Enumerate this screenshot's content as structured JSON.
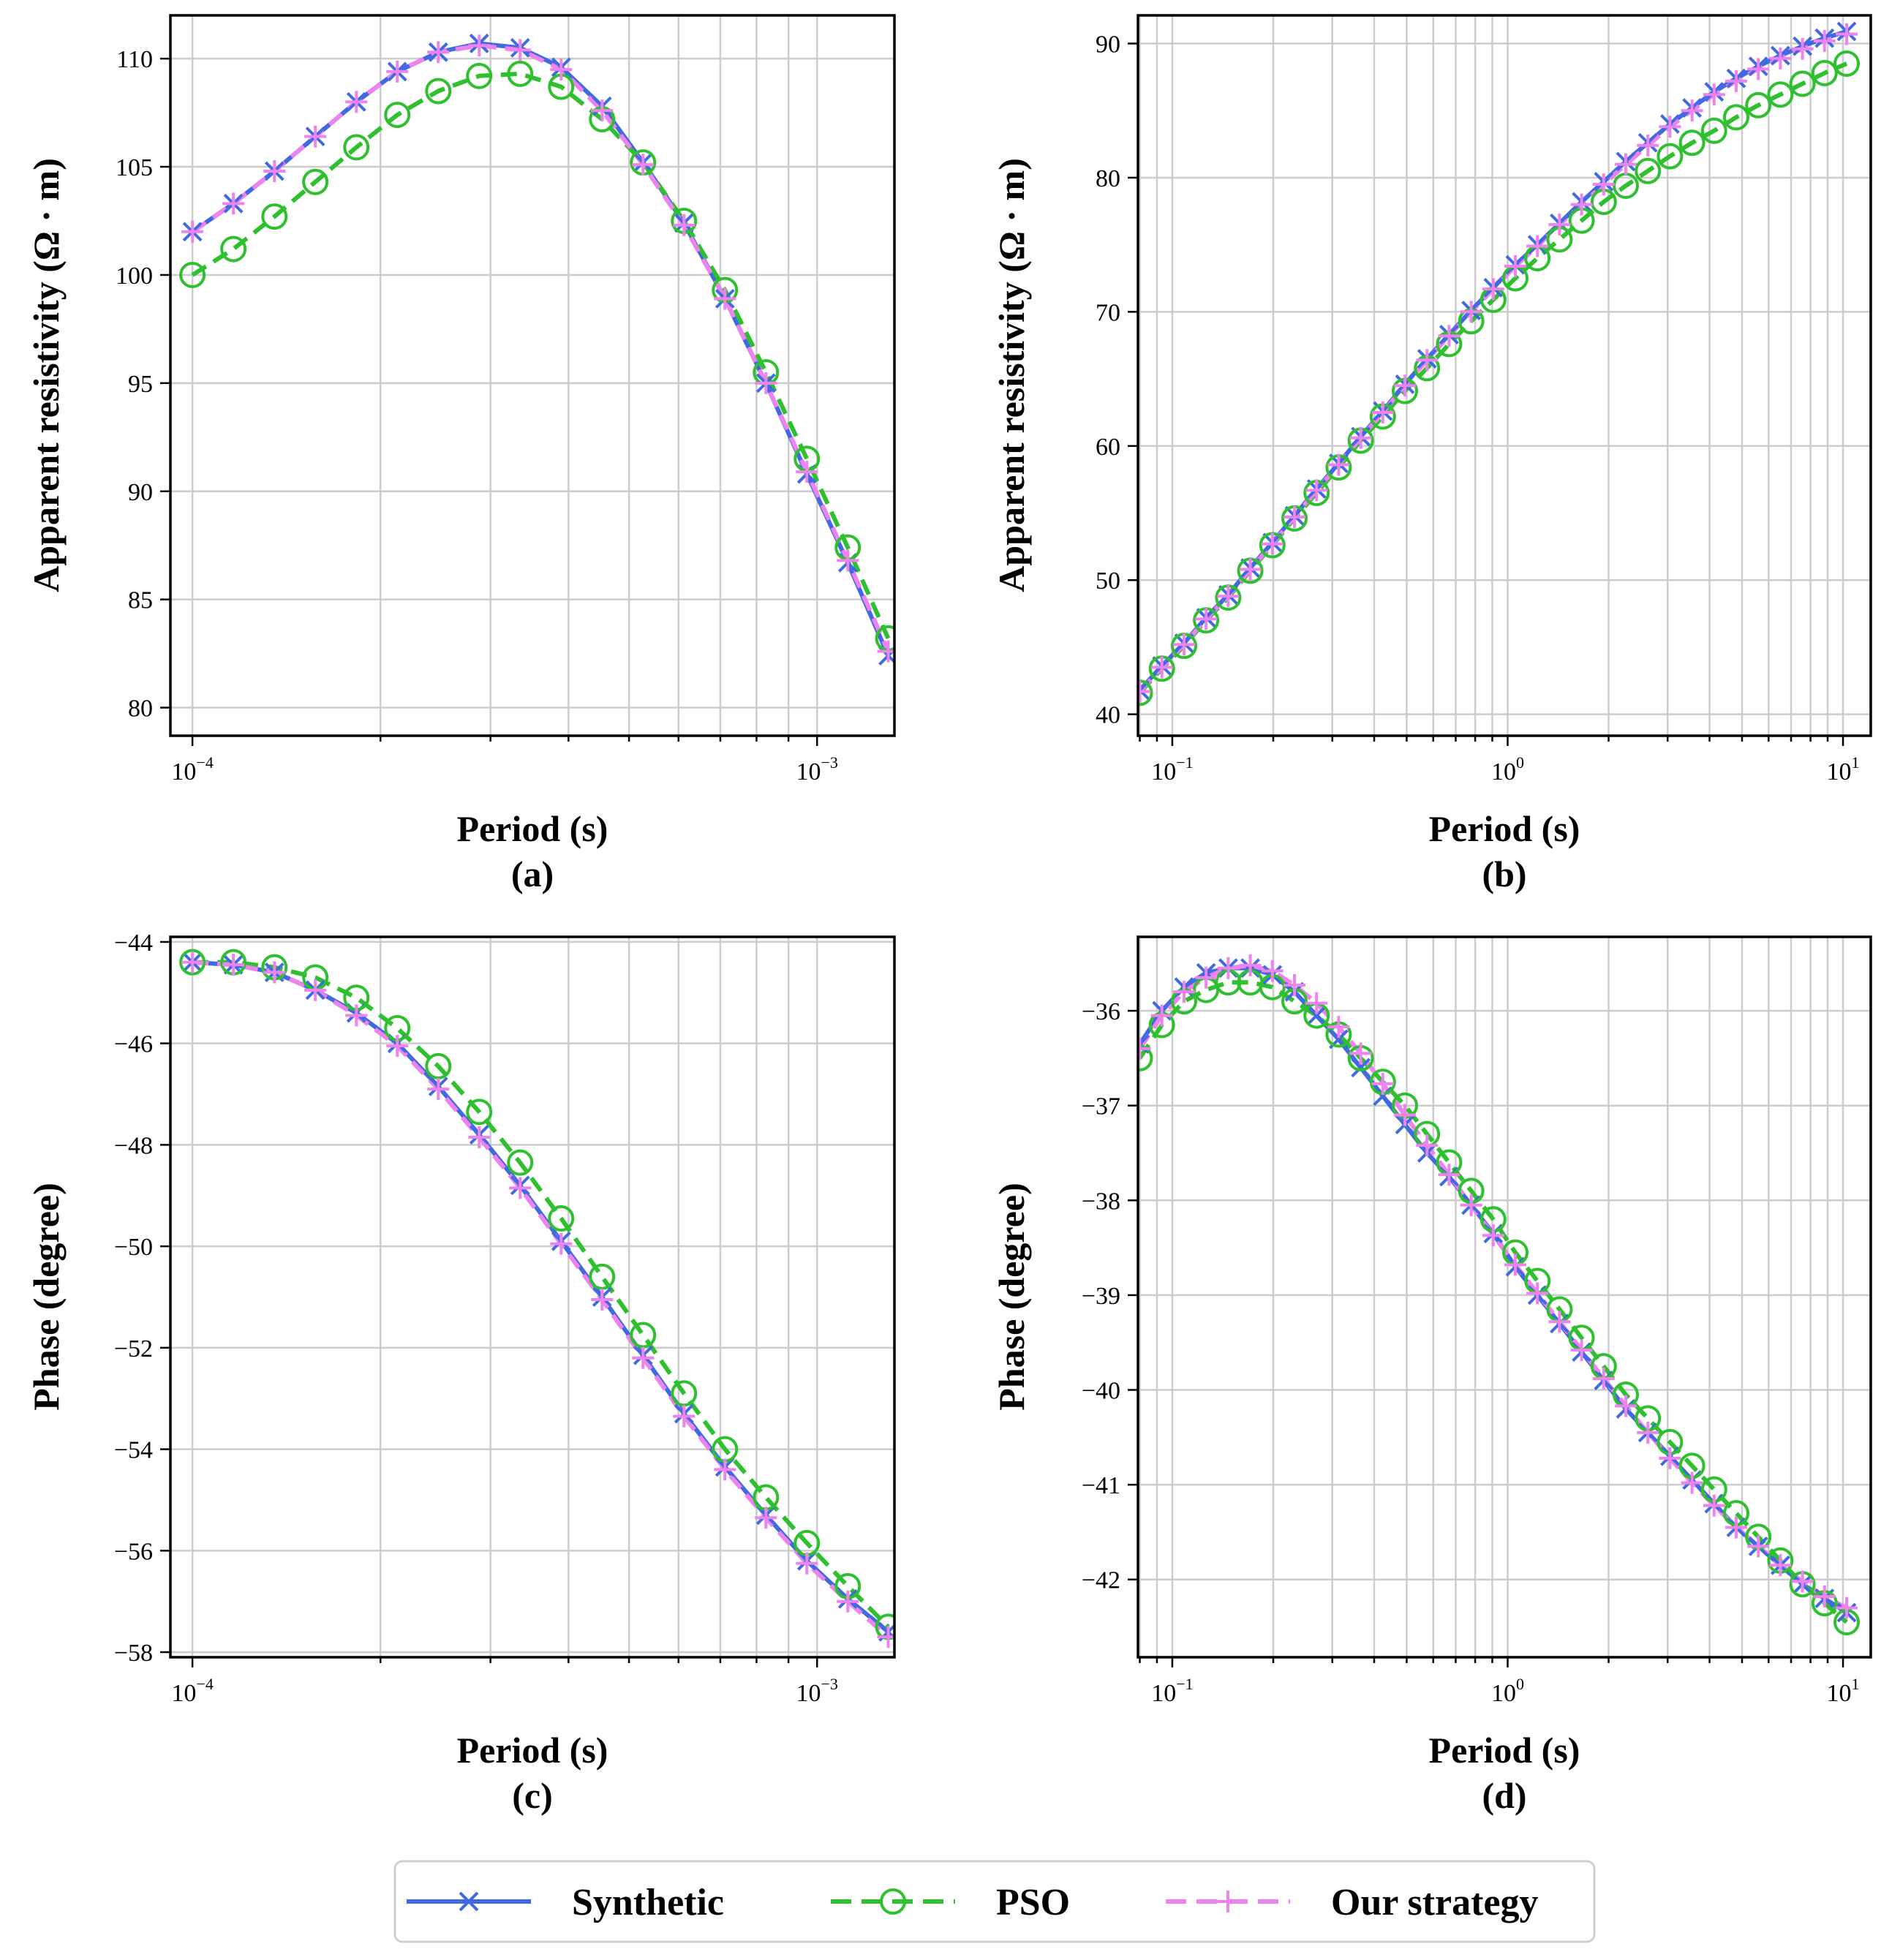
{
  "legend": {
    "location": "bottom-center",
    "entries": [
      {
        "key": "synthetic",
        "label": "Synthetic",
        "color": "#4169e1",
        "marker": "x",
        "line": "solid"
      },
      {
        "key": "pso",
        "label": "PSO",
        "color": "#2ec02e",
        "marker": "o",
        "line": "dashed"
      },
      {
        "key": "ours",
        "label": "Our strategy",
        "color": "#ee82ee",
        "marker": "+",
        "line": "dashed"
      }
    ]
  },
  "chart_data": [
    {
      "id": "a",
      "panel_label": "(a)",
      "type": "line",
      "xlabel": "Period (s)",
      "ylabel": "Apparent resistivity (Ω · m)",
      "xscale": "log",
      "xlim": [
        9.22e-05,
        0.00133
      ],
      "ylim": [
        78.7,
        112
      ],
      "xticks": [
        {
          "value": 0.0001,
          "base": "10",
          "exp": "−4"
        },
        {
          "value": 0.001,
          "base": "10",
          "exp": "−3"
        }
      ],
      "yticks": [
        80,
        85,
        90,
        95,
        100,
        105,
        110
      ],
      "grid": true,
      "x": [
        0.0001,
        0.0001163,
        0.0001353,
        0.0001573,
        0.000183,
        0.0002128,
        0.0002475,
        0.0002878,
        0.0003347,
        0.0003893,
        0.0004527,
        0.0005265,
        0.0006123,
        0.0007121,
        0.0008282,
        0.0009631,
        0.00112,
        0.0013
      ],
      "series": [
        {
          "key": "synthetic",
          "name": "Synthetic",
          "values": [
            102.0,
            103.3,
            104.8,
            106.4,
            108.0,
            109.4,
            110.3,
            110.7,
            110.5,
            109.6,
            107.8,
            105.2,
            102.4,
            98.9,
            95.0,
            90.8,
            86.7,
            82.4
          ]
        },
        {
          "key": "pso",
          "name": "PSO",
          "values": [
            100.0,
            101.2,
            102.7,
            104.3,
            105.9,
            107.4,
            108.5,
            109.2,
            109.3,
            108.7,
            107.2,
            105.2,
            102.5,
            99.3,
            95.5,
            91.5,
            87.4,
            83.2
          ]
        },
        {
          "key": "ours",
          "name": "Our strategy",
          "values": [
            102.0,
            103.3,
            104.8,
            106.4,
            108.0,
            109.4,
            110.3,
            110.6,
            110.4,
            109.5,
            107.6,
            105.1,
            102.3,
            98.9,
            95.0,
            90.9,
            86.8,
            82.6
          ]
        }
      ]
    },
    {
      "id": "b",
      "panel_label": "(b)",
      "type": "line",
      "xlabel": "Period (s)",
      "ylabel": "Apparent resistivity (Ω · m)",
      "xscale": "log",
      "xlim": [
        0.079,
        12.1
      ],
      "ylim": [
        38.4,
        92.1
      ],
      "xticks": [
        {
          "value": 0.1,
          "base": "10",
          "exp": "−1"
        },
        {
          "value": 1,
          "base": "10",
          "exp": "0"
        },
        {
          "value": 10,
          "base": "10",
          "exp": "1"
        }
      ],
      "yticks": [
        40,
        50,
        60,
        70,
        80,
        90
      ],
      "grid": true,
      "x": [
        0.08,
        0.0931,
        0.1084,
        0.1261,
        0.1468,
        0.1708,
        0.1988,
        0.2314,
        0.2693,
        0.3134,
        0.3647,
        0.4244,
        0.4939,
        0.5748,
        0.6689,
        0.7785,
        0.906,
        1.0543,
        1.2269,
        1.4279,
        1.6617,
        1.9339,
        2.2505,
        2.619,
        3.0479,
        3.547,
        4.1278,
        4.8037,
        5.5903,
        6.5057,
        7.571,
        8.8107,
        10.2534
      ],
      "series": [
        {
          "key": "synthetic",
          "name": "Synthetic",
          "values": [
            41.8,
            43.6,
            45.3,
            47.2,
            48.9,
            50.9,
            52.8,
            54.8,
            56.8,
            58.7,
            60.7,
            62.6,
            64.6,
            66.5,
            68.3,
            70.1,
            71.8,
            73.5,
            75.0,
            76.6,
            78.2,
            79.7,
            81.2,
            82.6,
            84.0,
            85.2,
            86.4,
            87.4,
            88.3,
            89.1,
            89.8,
            90.4,
            90.9
          ]
        },
        {
          "key": "pso",
          "name": "PSO",
          "values": [
            41.6,
            43.4,
            45.1,
            47.0,
            48.7,
            50.7,
            52.6,
            54.6,
            56.5,
            58.4,
            60.4,
            62.2,
            64.1,
            65.8,
            67.6,
            69.3,
            70.9,
            72.5,
            74.0,
            75.4,
            76.8,
            78.2,
            79.4,
            80.5,
            81.6,
            82.6,
            83.5,
            84.5,
            85.4,
            86.2,
            87.0,
            87.8,
            88.5
          ]
        },
        {
          "key": "ours",
          "name": "Our strategy",
          "values": [
            41.7,
            43.5,
            45.2,
            47.1,
            48.8,
            50.8,
            52.7,
            54.7,
            56.7,
            58.6,
            60.6,
            62.5,
            64.5,
            66.4,
            68.2,
            70.0,
            71.7,
            73.4,
            74.9,
            76.5,
            78.0,
            79.5,
            81.0,
            82.4,
            83.8,
            85.0,
            86.2,
            87.2,
            88.1,
            88.9,
            89.6,
            90.2,
            90.7
          ]
        }
      ]
    },
    {
      "id": "c",
      "panel_label": "(c)",
      "type": "line",
      "xlabel": "Period (s)",
      "ylabel": "Phase (degree)",
      "xscale": "log",
      "xlim": [
        9.22e-05,
        0.00133
      ],
      "ylim": [
        -58.1,
        -43.9
      ],
      "xticks": [
        {
          "value": 0.0001,
          "base": "10",
          "exp": "−4"
        },
        {
          "value": 0.001,
          "base": "10",
          "exp": "−3"
        }
      ],
      "yticks": [
        -44,
        -46,
        -48,
        -50,
        -52,
        -54,
        -56,
        -58
      ],
      "grid": true,
      "x": [
        0.0001,
        0.0001163,
        0.0001353,
        0.0001573,
        0.000183,
        0.0002128,
        0.0002475,
        0.0002878,
        0.0003347,
        0.0003893,
        0.0004527,
        0.0005265,
        0.0006123,
        0.0007121,
        0.0008282,
        0.0009631,
        0.00112,
        0.0013
      ],
      "series": [
        {
          "key": "synthetic",
          "name": "Synthetic",
          "values": [
            -44.4,
            -44.45,
            -44.6,
            -44.95,
            -45.4,
            -46.0,
            -46.85,
            -47.8,
            -48.8,
            -49.9,
            -51.0,
            -52.15,
            -53.3,
            -54.35,
            -55.3,
            -56.2,
            -56.95,
            -57.6
          ]
        },
        {
          "key": "pso",
          "name": "PSO",
          "values": [
            -44.4,
            -44.4,
            -44.5,
            -44.7,
            -45.1,
            -45.7,
            -46.45,
            -47.35,
            -48.35,
            -49.45,
            -50.6,
            -51.75,
            -52.9,
            -54.0,
            -54.95,
            -55.85,
            -56.7,
            -57.5
          ]
        },
        {
          "key": "ours",
          "name": "Our strategy",
          "values": [
            -44.4,
            -44.45,
            -44.6,
            -44.95,
            -45.45,
            -46.05,
            -46.9,
            -47.85,
            -48.85,
            -49.95,
            -51.05,
            -52.2,
            -53.35,
            -54.4,
            -55.35,
            -56.25,
            -57.0,
            -57.7
          ]
        }
      ]
    },
    {
      "id": "d",
      "panel_label": "(d)",
      "type": "line",
      "xlabel": "Period (s)",
      "ylabel": "Phase (degree)",
      "xscale": "log",
      "xlim": [
        0.079,
        12.1
      ],
      "ylim": [
        -42.82,
        -35.22
      ],
      "xticks": [
        {
          "value": 0.1,
          "base": "10",
          "exp": "−1"
        },
        {
          "value": 1,
          "base": "10",
          "exp": "0"
        },
        {
          "value": 10,
          "base": "10",
          "exp": "1"
        }
      ],
      "yticks": [
        -36,
        -37,
        -38,
        -39,
        -40,
        -41,
        -42
      ],
      "grid": true,
      "x": [
        0.08,
        0.0931,
        0.1084,
        0.1261,
        0.1468,
        0.1708,
        0.1988,
        0.2314,
        0.2693,
        0.3134,
        0.3647,
        0.4244,
        0.4939,
        0.5748,
        0.6689,
        0.7785,
        0.906,
        1.0543,
        1.2269,
        1.4279,
        1.6617,
        1.9339,
        2.2505,
        2.619,
        3.0479,
        3.547,
        4.1278,
        4.8037,
        5.5903,
        6.5057,
        7.571,
        8.8107,
        10.2534
      ],
      "series": [
        {
          "key": "synthetic",
          "name": "Synthetic",
          "values": [
            -36.35,
            -36.0,
            -35.75,
            -35.6,
            -35.55,
            -35.55,
            -35.62,
            -35.8,
            -36.05,
            -36.3,
            -36.6,
            -36.9,
            -37.2,
            -37.5,
            -37.75,
            -38.05,
            -38.35,
            -38.7,
            -39.0,
            -39.3,
            -39.6,
            -39.9,
            -40.2,
            -40.45,
            -40.7,
            -40.95,
            -41.2,
            -41.45,
            -41.65,
            -41.85,
            -42.05,
            -42.2,
            -42.35
          ]
        },
        {
          "key": "pso",
          "name": "PSO",
          "values": [
            -36.5,
            -36.15,
            -35.9,
            -35.78,
            -35.7,
            -35.7,
            -35.75,
            -35.9,
            -36.05,
            -36.25,
            -36.5,
            -36.75,
            -37.0,
            -37.3,
            -37.6,
            -37.9,
            -38.2,
            -38.55,
            -38.85,
            -39.15,
            -39.45,
            -39.75,
            -40.05,
            -40.3,
            -40.55,
            -40.8,
            -41.05,
            -41.3,
            -41.55,
            -41.8,
            -42.05,
            -42.25,
            -42.45
          ]
        },
        {
          "key": "ours",
          "name": "Our strategy",
          "values": [
            -36.4,
            -36.05,
            -35.8,
            -35.65,
            -35.55,
            -35.52,
            -35.58,
            -35.73,
            -35.92,
            -36.17,
            -36.45,
            -36.77,
            -37.1,
            -37.42,
            -37.73,
            -38.05,
            -38.37,
            -38.68,
            -38.98,
            -39.28,
            -39.58,
            -39.88,
            -40.17,
            -40.45,
            -40.72,
            -40.98,
            -41.22,
            -41.45,
            -41.65,
            -41.85,
            -42.02,
            -42.18,
            -42.3
          ]
        }
      ]
    }
  ]
}
